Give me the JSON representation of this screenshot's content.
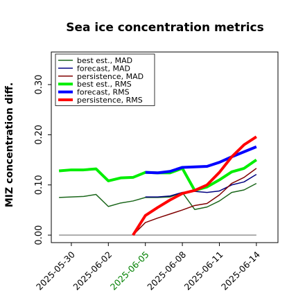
{
  "chart_data": {
    "type": "line",
    "title": "Sea ice concentration metrics",
    "ylabel": "MIZ concentration diff.",
    "xlabel": "",
    "ylim": [
      -0.015,
      0.365
    ],
    "y_ticks": [
      0.0,
      0.1,
      0.2,
      0.3
    ],
    "y_tick_labels": [
      "0.00",
      "0.10",
      "0.20",
      "0.30"
    ],
    "y_tick_side": "left",
    "y_tick_label_rotation": -90,
    "x_range": [
      "2025-05-28T09:00",
      "2025-06-15T18:00"
    ],
    "x_tick_dates": [
      "2025-05-30",
      "2025-06-02",
      "2025-06-05",
      "2025-06-08",
      "2025-06-11",
      "2025-06-14"
    ],
    "x_tick_labels": [
      "2025-05-30",
      "2025-06-02",
      "2025-06-05",
      "2025-06-08",
      "2025-06-11",
      "2025-06-14"
    ],
    "x_tick_label_colors": [
      "#000000",
      "#000000",
      "#008000",
      "#000000",
      "#000000",
      "#000000"
    ],
    "x_tick_label_rotation": 45,
    "grid": false,
    "legend_position": "top-left",
    "series": [
      {
        "name": "best est., MAD",
        "color": "#1a661a",
        "linewidth": "thin",
        "points": [
          [
            "2025-05-29",
            0.075
          ],
          [
            "2025-05-31",
            0.077
          ],
          [
            "2025-06-01",
            0.081
          ],
          [
            "2025-06-02",
            0.057
          ],
          [
            "2025-06-03",
            0.064
          ],
          [
            "2025-06-04",
            0.068
          ],
          [
            "2025-06-05",
            0.075
          ],
          [
            "2025-06-06",
            0.075
          ],
          [
            "2025-06-07",
            0.076
          ],
          [
            "2025-06-08",
            0.085
          ],
          [
            "2025-06-09",
            0.051
          ],
          [
            "2025-06-10",
            0.056
          ],
          [
            "2025-06-11",
            0.068
          ],
          [
            "2025-06-12",
            0.085
          ],
          [
            "2025-06-13",
            0.09
          ],
          [
            "2025-06-14",
            0.103
          ]
        ]
      },
      {
        "name": "forecast, MAD",
        "color": "#000080",
        "linewidth": "thin",
        "points": [
          [
            "2025-06-05",
            0.076
          ],
          [
            "2025-06-06",
            0.076
          ],
          [
            "2025-06-07",
            0.078
          ],
          [
            "2025-06-08",
            0.085
          ],
          [
            "2025-06-09",
            0.087
          ],
          [
            "2025-06-10",
            0.085
          ],
          [
            "2025-06-11",
            0.088
          ],
          [
            "2025-06-12",
            0.1
          ],
          [
            "2025-06-13",
            0.106
          ],
          [
            "2025-06-14",
            0.121
          ]
        ]
      },
      {
        "name": "persistence, MAD",
        "color": "#800000",
        "linewidth": "thin",
        "points": [
          [
            "2025-06-04",
            0.0
          ],
          [
            "2025-06-05",
            0.025
          ],
          [
            "2025-06-06",
            0.034
          ],
          [
            "2025-06-07",
            0.042
          ],
          [
            "2025-06-08",
            0.05
          ],
          [
            "2025-06-09",
            0.059
          ],
          [
            "2025-06-10",
            0.063
          ],
          [
            "2025-06-11",
            0.08
          ],
          [
            "2025-06-12",
            0.103
          ],
          [
            "2025-06-13",
            0.115
          ],
          [
            "2025-06-14",
            0.133
          ]
        ]
      },
      {
        "name": "best est., RMS",
        "color": "#00ee00",
        "linewidth": "thick",
        "points": [
          [
            "2025-05-29",
            0.128
          ],
          [
            "2025-05-30",
            0.13
          ],
          [
            "2025-05-31",
            0.13
          ],
          [
            "2025-06-01",
            0.132
          ],
          [
            "2025-06-02",
            0.108
          ],
          [
            "2025-06-03",
            0.114
          ],
          [
            "2025-06-04",
            0.115
          ],
          [
            "2025-06-05",
            0.125
          ],
          [
            "2025-06-06",
            0.124
          ],
          [
            "2025-06-07",
            0.124
          ],
          [
            "2025-06-08",
            0.133
          ],
          [
            "2025-06-09",
            0.089
          ],
          [
            "2025-06-10",
            0.096
          ],
          [
            "2025-06-11",
            0.11
          ],
          [
            "2025-06-12",
            0.126
          ],
          [
            "2025-06-13",
            0.133
          ],
          [
            "2025-06-14",
            0.15
          ]
        ]
      },
      {
        "name": "forecast, RMS",
        "color": "#0000ff",
        "linewidth": "thick",
        "points": [
          [
            "2025-06-05",
            0.125
          ],
          [
            "2025-06-06",
            0.124
          ],
          [
            "2025-06-07",
            0.127
          ],
          [
            "2025-06-08",
            0.135
          ],
          [
            "2025-06-09",
            0.136
          ],
          [
            "2025-06-10",
            0.137
          ],
          [
            "2025-06-11",
            0.145
          ],
          [
            "2025-06-12",
            0.156
          ],
          [
            "2025-06-13",
            0.166
          ],
          [
            "2025-06-14",
            0.176
          ]
        ]
      },
      {
        "name": "persistence, RMS",
        "color": "#ff0000",
        "linewidth": "thick",
        "points": [
          [
            "2025-06-04",
            0.0
          ],
          [
            "2025-06-05",
            0.039
          ],
          [
            "2025-06-06",
            0.055
          ],
          [
            "2025-06-07",
            0.07
          ],
          [
            "2025-06-08",
            0.083
          ],
          [
            "2025-06-09",
            0.089
          ],
          [
            "2025-06-10",
            0.1
          ],
          [
            "2025-06-11",
            0.125
          ],
          [
            "2025-06-12",
            0.156
          ],
          [
            "2025-06-13",
            0.18
          ],
          [
            "2025-06-14",
            0.196
          ]
        ]
      }
    ],
    "reference_lines": [
      {
        "name": "",
        "color": "#7f7f7f",
        "points": [
          [
            "2025-05-29",
            0.0
          ],
          [
            "2025-06-14",
            0.0
          ]
        ]
      }
    ]
  }
}
